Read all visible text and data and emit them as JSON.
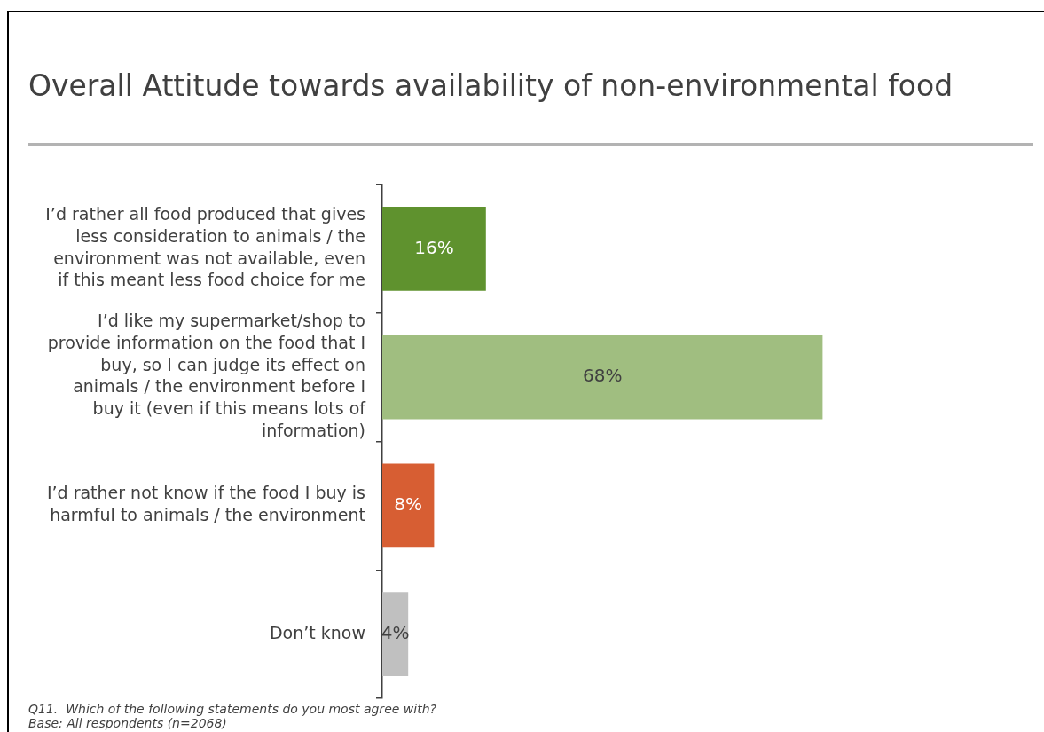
{
  "chart_data": {
    "type": "bar",
    "orientation": "horizontal",
    "title": "Overall Attitude towards availability of non-environmental food",
    "categories": [
      "I’d rather all food produced that gives less consideration to animals / the environment was not available, even if this meant less food choice for me",
      "I’d like my supermarket/shop to provide information on the food that I buy, so I can judge its effect on animals / the environment before I buy it (even if this means lots of information)",
      "I’d rather not know if the food I buy is harmful to animals / the environment",
      "Don’t know"
    ],
    "values": [
      16,
      68,
      8,
      4
    ],
    "colors": [
      "#5f922e",
      "#a0be80",
      "#d75e33",
      "#c0c0c0"
    ],
    "value_labels": [
      "16%",
      "68%",
      "8%",
      "4%"
    ],
    "annotations": [
      "Q11.  Which of the following statements do you most agree with?",
      "Base: All respondents (n=2068)"
    ]
  }
}
